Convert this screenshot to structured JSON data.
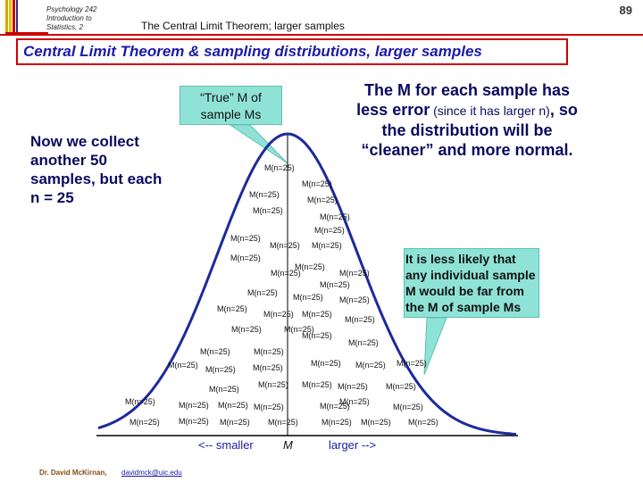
{
  "header": {
    "course": "Psychology 242 Introduction to Statistics, 2",
    "subtitle": "The Central Limit Theorem; larger samples",
    "slide_number": "89"
  },
  "title": "Central Limit Theorem & sampling distributions, larger samples",
  "left_text": "Now we collect another 50 samples, but each n = 25",
  "true_callout": "“True” M of sample Ms",
  "right_text": {
    "main1": "The M for each sample has less error",
    "small1": " (since it has larger n)",
    "main2": ", so the distribution will be “cleaner” and more normal."
  },
  "note": "It is less likely that any individual sample M would be far from the M of sample Ms",
  "axis": {
    "smaller": "<-- smaller",
    "m": "M",
    "larger": "larger -->"
  },
  "sample_label": "M(n=25)",
  "footer": {
    "author": "Dr. David McKirnan,",
    "email": "davidmck@uic.edu"
  },
  "colors": {
    "accent_red": "#cc0000",
    "title_blue": "#1a1aa8",
    "callout_fill": "#8fe3d6",
    "curve": "#1c2a9e"
  }
}
